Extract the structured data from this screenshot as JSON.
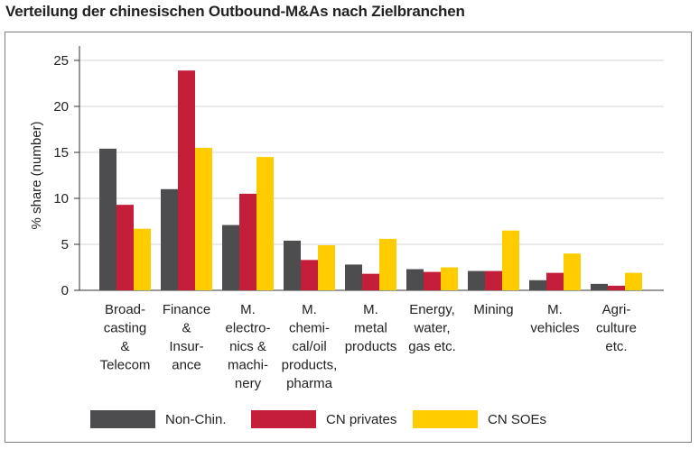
{
  "title": "Verteilung der chinesischen Outbound-M&As nach Zielbranchen",
  "chart_data": {
    "type": "bar",
    "title": "Verteilung der chinesischen Outbound-M&As nach Zielbranchen",
    "ylabel": "% share (number)",
    "xlabel": "",
    "ylim": [
      0,
      25
    ],
    "yticks": [
      "0",
      "5",
      "10",
      "15",
      "20",
      "25"
    ],
    "grid": true,
    "legend_position": "bottom",
    "categories": [
      [
        "Broad-",
        "casting",
        "&",
        "Telecom"
      ],
      [
        "Finance",
        "&",
        "Insur-",
        "ance"
      ],
      [
        "M.",
        "electro-",
        "nics &",
        "machi-",
        "nery"
      ],
      [
        "M.",
        "chemi-",
        "cal/oil",
        "products,",
        "pharma"
      ],
      [
        "M.",
        "metal",
        "products"
      ],
      [
        "Energy,",
        "water,",
        "gas etc."
      ],
      [
        "Mining"
      ],
      [
        "M.",
        "vehicles"
      ],
      [
        "Agri-",
        "culture",
        "etc."
      ]
    ],
    "series": [
      {
        "name": "Non-Chin.",
        "color": "#4d4d4f",
        "values": [
          15.4,
          11.0,
          7.1,
          5.4,
          2.8,
          2.3,
          2.1,
          1.1,
          0.7
        ]
      },
      {
        "name": "CN privates",
        "color": "#c41e3a",
        "values": [
          9.3,
          23.9,
          10.5,
          3.3,
          1.8,
          2.0,
          2.1,
          1.9,
          0.5
        ]
      },
      {
        "name": "CN SOEs",
        "color": "#ffcc00",
        "values": [
          6.7,
          15.5,
          14.5,
          4.9,
          5.6,
          2.5,
          6.5,
          4.0,
          1.9
        ]
      }
    ]
  }
}
